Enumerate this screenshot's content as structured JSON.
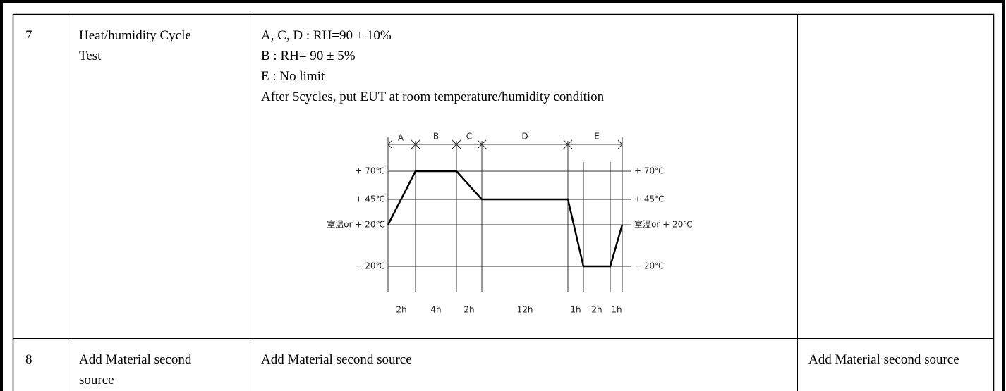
{
  "table": {
    "rows": [
      {
        "no": "7",
        "item": "Heat/humidity Cycle Test",
        "condition": [
          "A, C, D : RH=90 ± 10%",
          "B : RH= 90 ± 5%",
          "E : No limit",
          "After 5cycles, put EUT at room temperature/humidity condition"
        ],
        "diagram": {
          "segments": [
            "A",
            "B",
            "C",
            "D",
            "E"
          ],
          "temperatures": [
            "+ 70℃",
            "+ 45℃",
            "室温or + 20℃",
            "− 20℃"
          ],
          "durations": [
            "2h",
            "4h",
            "2h",
            "12h",
            "1h",
            "2h",
            "1h"
          ]
        }
      },
      {
        "no": "8",
        "item": "Add Material second source",
        "condition": [
          "Add Material second source"
        ],
        "remark": "Add Material second source"
      }
    ]
  }
}
